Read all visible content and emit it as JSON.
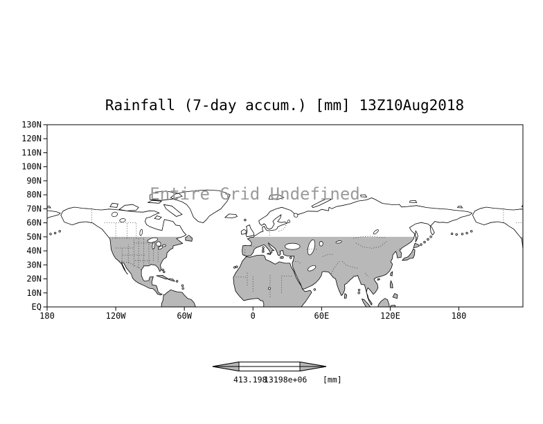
{
  "title": "Rainfall (7-day accum.) [mm] 13Z10Aug2018",
  "map_message": "Entire Grid Undefined",
  "yaxis": {
    "labels": [
      "130N",
      "120N",
      "110N",
      "100N",
      "90N",
      "80N",
      "70N",
      "60N",
      "50N",
      "40N",
      "30N",
      "20N",
      "10N",
      "EQ"
    ],
    "lats": [
      130,
      120,
      110,
      100,
      90,
      80,
      70,
      60,
      50,
      40,
      30,
      20,
      10,
      0
    ]
  },
  "xaxis": {
    "labels": [
      "180",
      "120W",
      "60W",
      "0",
      "60E",
      "120E",
      "180"
    ],
    "lons": [
      -180,
      -120,
      -60,
      0,
      60,
      120,
      180
    ]
  },
  "colorbar": {
    "left_label": "413.198",
    "right_label": "13198e+06",
    "unit": "[mm]"
  },
  "map": {
    "projection": "latlon",
    "lat_range": [
      "EQ",
      "130N"
    ],
    "lon_range": [
      "180W",
      "180E"
    ],
    "shaded_band_lat": [
      0,
      50
    ],
    "shade_color": "#b8b8b8",
    "coast_color": "#000000",
    "message_color": "#9a9a9a"
  }
}
